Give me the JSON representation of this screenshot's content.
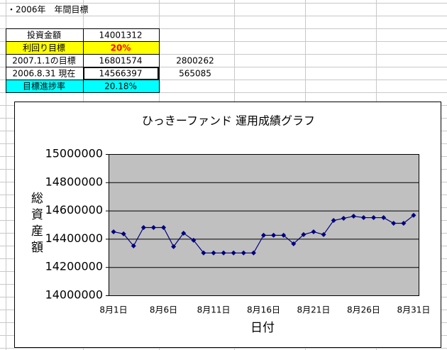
{
  "sheet": {
    "title": "・2006年　年間目標",
    "table": {
      "rows": [
        [
          "投資金額",
          "14001312"
        ],
        [
          "利回り目標",
          "20%"
        ],
        [
          "2007.1.1の目標",
          "16801574",
          "2800262"
        ],
        [
          "2006.8.31 現在",
          "14566397",
          "565085"
        ],
        [
          "目標進捗率",
          "20.18%"
        ]
      ]
    }
  },
  "chart_data": {
    "type": "line",
    "title": "ひっきーファンド 運用成績グラフ",
    "y_label": "総資産額",
    "x_label": "日付",
    "categories": [
      "8月1日",
      null,
      null,
      null,
      null,
      "8月6日",
      null,
      null,
      null,
      null,
      "8月11日",
      null,
      null,
      null,
      null,
      "8月16日",
      null,
      null,
      null,
      null,
      "8月21日",
      null,
      null,
      null,
      null,
      "8月26日",
      null,
      null,
      null,
      null,
      "8月31日"
    ],
    "series": [
      {
        "color": "#000080",
        "values": [
          14450000,
          14435000,
          14350000,
          14480000,
          14480000,
          14480000,
          14345000,
          14440000,
          14390000,
          14300000,
          14300000,
          14300000,
          14300000,
          14300000,
          14300000,
          14425000,
          14425000,
          14425000,
          14365000,
          14430000,
          14450000,
          14430000,
          14530000,
          14545000,
          14560000,
          14550000,
          14550000,
          14550000,
          14510000,
          14510000,
          14566397
        ]
      }
    ],
    "ylim": [
      14000000,
      15000000
    ],
    "yticks": [
      14000000,
      14200000,
      14400000,
      14600000,
      14800000,
      15000000
    ],
    "grid": true,
    "plot_color": "#c0c0c0"
  }
}
